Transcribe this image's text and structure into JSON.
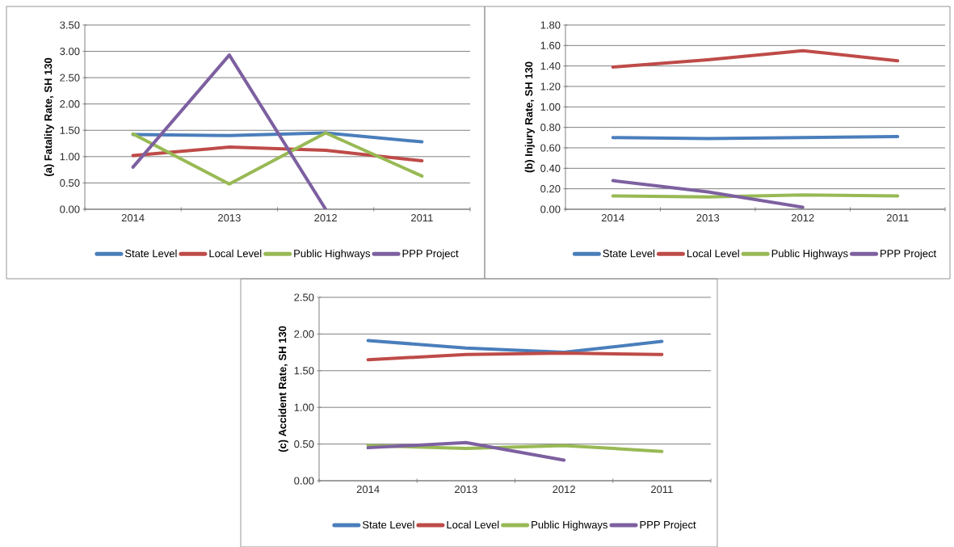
{
  "chart_data": [
    {
      "type": "line",
      "ylabel": "(a) Fatality Rate, SH 130",
      "categories": [
        "2014",
        "2013",
        "2012",
        "2011"
      ],
      "ylim": [
        0,
        3.5
      ],
      "yticks": [
        {
          "value": 0,
          "label": "0.00"
        },
        {
          "value": 0.5,
          "label": "0.50"
        },
        {
          "value": 1,
          "label": "1.00"
        },
        {
          "value": 1.5,
          "label": "1.50"
        },
        {
          "value": 2,
          "label": "2.00"
        },
        {
          "value": 2.5,
          "label": "2.50"
        },
        {
          "value": 3,
          "label": "3.00"
        },
        {
          "value": 3.5,
          "label": "3.50"
        }
      ],
      "grid": "y",
      "legend": "bottom",
      "marker": "none",
      "series": [
        {
          "name": "State Level",
          "color": "#4a7ebb",
          "values": [
            1.42,
            1.4,
            1.45,
            1.28
          ]
        },
        {
          "name": "Local Level",
          "color": "#be4b48",
          "values": [
            1.02,
            1.18,
            1.12,
            0.92
          ]
        },
        {
          "name": "Public Highways",
          "color": "#98b954",
          "values": [
            1.43,
            0.48,
            1.45,
            0.63
          ]
        },
        {
          "name": "PPP Project",
          "color": "#7d60a0",
          "values": [
            0.8,
            2.93,
            0.0,
            null
          ]
        }
      ]
    },
    {
      "type": "line",
      "ylabel": "(b) Injury Rate, SH 130",
      "categories": [
        "2014",
        "2013",
        "2012",
        "2011"
      ],
      "ylim": [
        0,
        1.8
      ],
      "yticks": [
        {
          "value": 0,
          "label": "0.00"
        },
        {
          "value": 0.2,
          "label": "0.20"
        },
        {
          "value": 0.4,
          "label": "0.40"
        },
        {
          "value": 0.6,
          "label": "0.60"
        },
        {
          "value": 0.8,
          "label": "0.80"
        },
        {
          "value": 1,
          "label": "1.00"
        },
        {
          "value": 1.2,
          "label": "1.20"
        },
        {
          "value": 1.4,
          "label": "1.40"
        },
        {
          "value": 1.6,
          "label": "1.60"
        },
        {
          "value": 1.8,
          "label": "1.80"
        }
      ],
      "grid": "y",
      "legend": "bottom",
      "marker": "none",
      "series": [
        {
          "name": "State Level",
          "color": "#4a7ebb",
          "values": [
            0.7,
            0.69,
            0.7,
            0.71
          ]
        },
        {
          "name": "Local Level",
          "color": "#be4b48",
          "values": [
            1.39,
            1.46,
            1.55,
            1.45
          ]
        },
        {
          "name": "Public Highways",
          "color": "#98b954",
          "values": [
            0.13,
            0.12,
            0.14,
            0.13
          ]
        },
        {
          "name": "PPP Project",
          "color": "#7d60a0",
          "values": [
            0.28,
            0.17,
            0.02,
            null
          ]
        }
      ]
    },
    {
      "type": "line",
      "ylabel": "(c)  Accident Rate, SH 130",
      "categories": [
        "2014",
        "2013",
        "2012",
        "2011"
      ],
      "ylim": [
        0,
        2.5
      ],
      "yticks": [
        {
          "value": 0,
          "label": "0.00"
        },
        {
          "value": 0.5,
          "label": "0.50"
        },
        {
          "value": 1,
          "label": "1.00"
        },
        {
          "value": 1.5,
          "label": "1.50"
        },
        {
          "value": 2,
          "label": "2.00"
        },
        {
          "value": 2.5,
          "label": "2.50"
        }
      ],
      "grid": "y",
      "legend": "bottom",
      "marker": "none",
      "series": [
        {
          "name": "State Level",
          "color": "#4a7ebb",
          "values": [
            1.91,
            1.81,
            1.75,
            1.9
          ]
        },
        {
          "name": "Local Level",
          "color": "#be4b48",
          "values": [
            1.65,
            1.72,
            1.74,
            1.72
          ]
        },
        {
          "name": "Public Highways",
          "color": "#98b954",
          "values": [
            0.48,
            0.44,
            0.48,
            0.4
          ]
        },
        {
          "name": "PPP Project",
          "color": "#7d60a0",
          "values": [
            0.45,
            0.52,
            0.28,
            null
          ]
        }
      ]
    }
  ]
}
